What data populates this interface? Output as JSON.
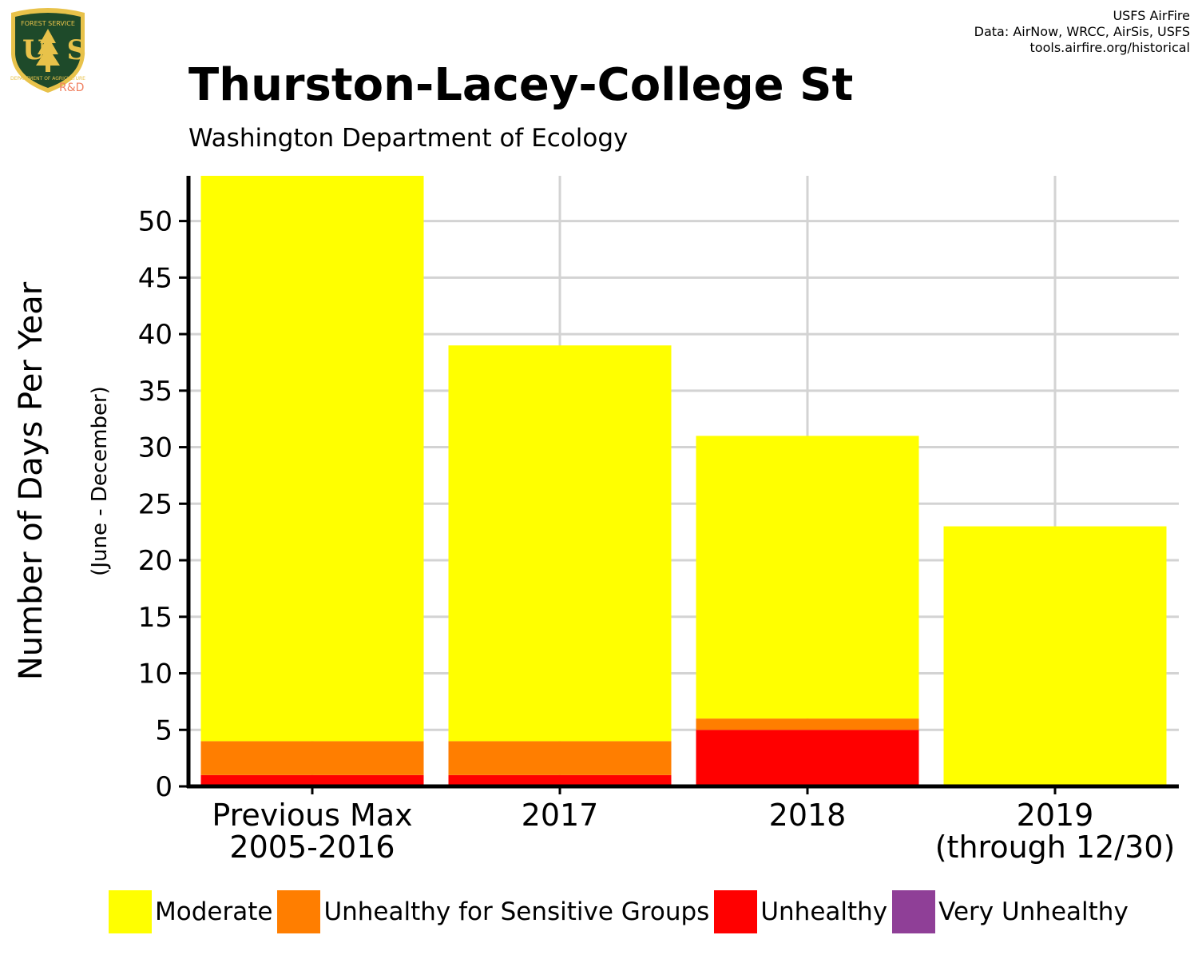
{
  "header": {
    "title": "Thurston-Lacey-College St",
    "subtitle": "Washington Department of Ecology",
    "credits": [
      "USFS AirFire",
      "Data: AirNow, WRCC, AirSis, USFS",
      "tools.airfire.org/historical"
    ]
  },
  "logo": {
    "top_text": "FOREST SERVICE",
    "letters": "US",
    "bottom_text": "DEPARTMENT OF AGRICULTURE",
    "tag": "R&D",
    "colors": {
      "shield": "#1e4a2a",
      "border": "#e8c24a",
      "tree": "#e8c24a",
      "tag": "#f08060"
    }
  },
  "chart_data": {
    "type": "bar",
    "stacked": true,
    "categories": [
      [
        "Previous Max",
        "2005-2016"
      ],
      [
        "2017"
      ],
      [
        "2018"
      ],
      [
        "2019",
        "(through 12/30)"
      ]
    ],
    "series": [
      {
        "name": "Unhealthy",
        "color": "#ff0000",
        "values": [
          1,
          1,
          5,
          0
        ]
      },
      {
        "name": "Unhealthy for Sensitive Groups",
        "color": "#ff7e00",
        "values": [
          3,
          3,
          1,
          0
        ]
      },
      {
        "name": "Moderate",
        "color": "#ffff00",
        "values": [
          50,
          35,
          25,
          23
        ]
      }
    ],
    "ylabel": "Number of Days Per Year",
    "ylabel_sub": "(June - December)",
    "ylim": [
      0,
      54
    ],
    "yticks": [
      0,
      5,
      10,
      15,
      20,
      25,
      30,
      35,
      40,
      45,
      50
    ],
    "grid": true,
    "legend_position": "bottom"
  },
  "legend": [
    {
      "label": "Moderate",
      "color": "#ffff00"
    },
    {
      "label": "Unhealthy for Sensitive Groups",
      "color": "#ff7e00"
    },
    {
      "label": "Unhealthy",
      "color": "#ff0000"
    },
    {
      "label": "Very Unhealthy",
      "color": "#8f3f97"
    }
  ]
}
